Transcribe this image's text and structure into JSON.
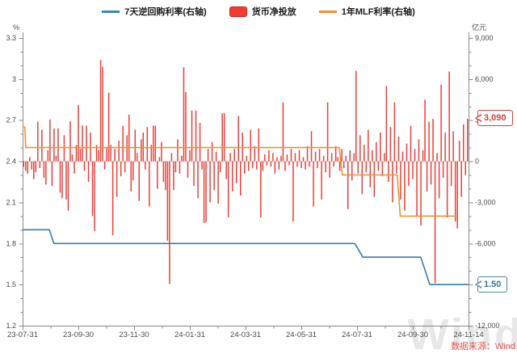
{
  "legend_note": "legend labels bind to chart_data.series names",
  "footer": {
    "source": "数据来源：Wind"
  },
  "watermark": "Wind",
  "colors": {
    "repo_blue": "#3a7ca8",
    "bar_red": "#e8403a",
    "mlf_orange": "#f0912e",
    "axis_gray": "#8a8a8a",
    "label_gray": "#4a4a4a",
    "callout_red": "#d0413a",
    "callout_blue": "#4c86a5",
    "source_red": "#dd5c55"
  },
  "chart_data": {
    "type": "bar",
    "subtype": "combo bar + step lines",
    "title": "",
    "legend_position": "top",
    "grid": "off",
    "x_axis": {
      "tick_labels": [
        "23-07-31",
        "23-09-30",
        "23-11-30",
        "24-01-31",
        "24-03-31",
        "24-05-31",
        "24-07-31",
        "24-09-30",
        "24-11-14"
      ],
      "minor_ticks": "monthly (midway between labeled ticks)"
    },
    "left_axis": {
      "label": "%",
      "min": 1.2,
      "max": 3.3,
      "tick_values": [
        3.3,
        3,
        2.7,
        2.4,
        2.1,
        1.8,
        1.5,
        1.2
      ],
      "tick_labels": [
        "3.3",
        "3",
        "2.7",
        "2.4",
        "2.1",
        "1.8",
        "1.5",
        "1.2"
      ],
      "minor_step": 0.1
    },
    "right_axis": {
      "label": "亿元",
      "min": -12000,
      "max": 9000,
      "tick_values": [
        9000,
        6000,
        3000,
        0,
        -3000,
        -6000,
        -9000,
        -12000
      ],
      "tick_labels": [
        "9,000",
        "6,000",
        "3,000",
        "0",
        "-3,000",
        "-6,000",
        "-9,000",
        "-12,000"
      ],
      "minor_step": 1000
    },
    "series": [
      {
        "name": "7天逆回购利率(右轴)",
        "type": "line",
        "scale": "percent_left",
        "color": "#3a7ca8",
        "end_label": "1.50",
        "points": [
          [
            0,
            1.9
          ],
          [
            0.06,
            1.9
          ],
          [
            0.07,
            1.8
          ],
          [
            0.745,
            1.8
          ],
          [
            0.763,
            1.7
          ],
          [
            0.893,
            1.7
          ],
          [
            0.913,
            1.5
          ],
          [
            1,
            1.5
          ]
        ]
      },
      {
        "name": "货币净投放",
        "type": "bar",
        "scale": "yi_yuan_right",
        "color": "#e8403a",
        "end_label": "3,090",
        "last_value": 3090,
        "values": [
          -400,
          -700,
          -900,
          300,
          -600,
          -1300,
          -800,
          2900,
          -500,
          2300,
          -1200,
          -1700,
          800,
          3050,
          -1800,
          2400,
          400,
          2400,
          -2300,
          -2700,
          1900,
          -2800,
          -3600,
          2900,
          500,
          -900,
          1200,
          4100,
          900,
          2600,
          -700,
          2600,
          -1500,
          2100,
          -4000,
          -5100,
          1200,
          800,
          7400,
          6900,
          -600,
          1000,
          5000,
          1200,
          -5400,
          900,
          -2600,
          1500,
          -1100,
          2600,
          -800,
          1900,
          3400,
          -2200,
          -1400,
          2300,
          600,
          -2900,
          1600,
          2100,
          -600,
          2500,
          -3300,
          1200,
          2600,
          2600,
          -2000,
          300,
          1400,
          -1500,
          -2100,
          -5800,
          -8950,
          600,
          -2100,
          -800,
          1600,
          -900,
          400,
          6860,
          5060,
          -1200,
          800,
          3700,
          -1800,
          3700,
          -2700,
          2800,
          -600,
          -4500,
          -4460,
          900,
          -3000,
          1400,
          -2100,
          700,
          -3100,
          -800,
          3500,
          3500,
          -1300,
          -4100,
          600,
          -2200,
          900,
          -1600,
          3300,
          -2500,
          2100,
          -900,
          400,
          -700,
          2300,
          -500,
          1100,
          -600,
          2400,
          -4100,
          -700,
          500,
          -300,
          800,
          -400,
          600,
          -900,
          300,
          -600,
          400,
          4300,
          -700,
          500,
          -300,
          900,
          -4400,
          600,
          -400,
          800,
          -500,
          300,
          -600,
          1100,
          -400,
          2200,
          -3300,
          700,
          -500,
          900,
          -2800,
          400,
          -800,
          4300,
          -1200,
          600,
          -400,
          1100,
          300,
          -700,
          900,
          -500,
          400,
          -3500,
          800,
          -1400,
          600,
          6600,
          -900,
          1900,
          -2400,
          1200,
          -800,
          2300,
          -1900,
          800,
          -2600,
          1400,
          -700,
          2100,
          -1100,
          600,
          5500,
          -1500,
          2500,
          -3000,
          4300,
          -900,
          1800,
          -2800,
          700,
          -3600,
          1300,
          -1800,
          2600,
          -1300,
          900,
          -4000,
          1600,
          -4700,
          800,
          4500,
          -2200,
          2900,
          -1700,
          3100,
          -8900,
          600,
          -2700,
          5600,
          -1200,
          2100,
          -4100,
          6550,
          -1800,
          2200,
          -4400,
          -4900,
          1500,
          -2600,
          2700,
          -1000,
          3090
        ]
      },
      {
        "name": "1年MLF利率(右轴)",
        "type": "line",
        "scale": "percent_left",
        "color": "#f0912e",
        "points": [
          [
            0,
            2.65
          ],
          [
            0.005,
            2.65
          ],
          [
            0.007,
            2.5
          ],
          [
            0.71,
            2.5
          ],
          [
            0.717,
            2.3
          ],
          [
            0.84,
            2.3
          ],
          [
            0.847,
            2.0
          ],
          [
            0.973,
            2.0
          ]
        ]
      }
    ]
  }
}
